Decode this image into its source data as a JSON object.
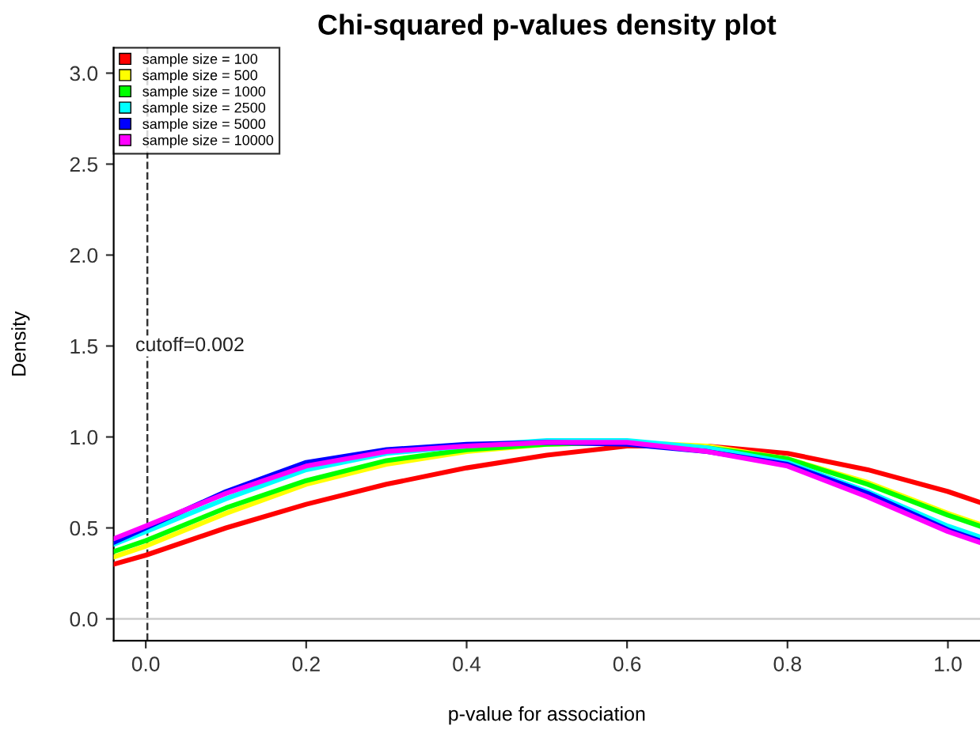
{
  "chart_data": {
    "type": "line",
    "title": "Chi-squared p-values density plot",
    "xlabel": "p-value for association",
    "ylabel": "Density",
    "x": [
      -0.04,
      0,
      0.1,
      0.2,
      0.3,
      0.4,
      0.5,
      0.6,
      0.7,
      0.8,
      0.9,
      1.0,
      1.04
    ],
    "series": [
      {
        "name": "sample size = 100",
        "color": "#ff0000",
        "values": [
          0.3,
          0.35,
          0.5,
          0.63,
          0.74,
          0.83,
          0.9,
          0.95,
          0.95,
          0.91,
          0.82,
          0.7,
          0.64
        ]
      },
      {
        "name": "sample size = 500",
        "color": "#ffff00",
        "values": [
          0.34,
          0.4,
          0.58,
          0.74,
          0.85,
          0.92,
          0.96,
          0.97,
          0.95,
          0.88,
          0.75,
          0.58,
          0.52
        ]
      },
      {
        "name": "sample size = 1000",
        "color": "#00ff00",
        "values": [
          0.37,
          0.43,
          0.61,
          0.76,
          0.87,
          0.93,
          0.96,
          0.97,
          0.94,
          0.88,
          0.74,
          0.57,
          0.51
        ]
      },
      {
        "name": "sample size = 2500",
        "color": "#00ffff",
        "values": [
          0.41,
          0.48,
          0.66,
          0.82,
          0.91,
          0.95,
          0.98,
          0.98,
          0.94,
          0.86,
          0.7,
          0.51,
          0.45
        ]
      },
      {
        "name": "sample size = 5000",
        "color": "#0000ff",
        "values": [
          0.42,
          0.5,
          0.7,
          0.86,
          0.93,
          0.96,
          0.97,
          0.96,
          0.92,
          0.85,
          0.69,
          0.49,
          0.43
        ]
      },
      {
        "name": "sample size = 10000",
        "color": "#ff00ff",
        "values": [
          0.44,
          0.51,
          0.69,
          0.84,
          0.92,
          0.95,
          0.97,
          0.97,
          0.92,
          0.84,
          0.67,
          0.48,
          0.42
        ]
      }
    ],
    "xlim": [
      -0.04,
      1.04
    ],
    "xticks": [
      {
        "value": 0,
        "label": "0.0"
      },
      0.2,
      0.4,
      0.6,
      0.8,
      {
        "value": 1,
        "label": "1.0"
      }
    ],
    "ylim": [
      -0.12,
      3.14
    ],
    "yticks": [
      {
        "value": 0,
        "label": "0.0"
      },
      0.5,
      {
        "value": 1,
        "label": "1.0"
      },
      1.5,
      {
        "value": 2,
        "label": "2.0"
      },
      2.5,
      {
        "value": 3,
        "label": "3.0"
      }
    ],
    "ref_lines": [
      {
        "axis": "x",
        "value": 0.002,
        "label": "cutoff=0.002",
        "color": "#333333",
        "line_style": "dashed"
      },
      {
        "axis": "y",
        "value": 0,
        "color": "#cccccc",
        "line_style": "solid"
      }
    ],
    "legend": "top left",
    "grid": false,
    "marker": "none",
    "line_style": "solid"
  }
}
